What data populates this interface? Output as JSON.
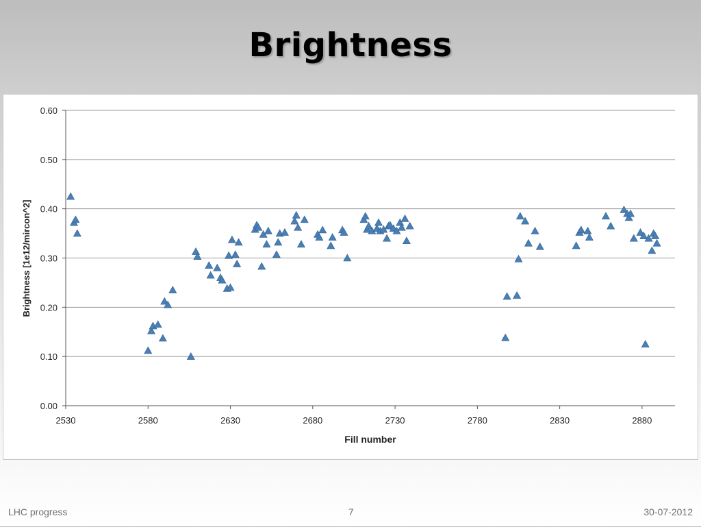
{
  "slide": {
    "title": "Brightness"
  },
  "footer": {
    "left": "LHC progress",
    "page": "7",
    "date": "30-07-2012"
  },
  "chart_data": {
    "type": "scatter",
    "title": "",
    "xlabel": "Fill number",
    "ylabel": "Brightness [1e12/mircon^2]",
    "xlim": [
      2530,
      2900
    ],
    "ylim": [
      0.0,
      0.6
    ],
    "x_ticks": [
      "2530",
      "2580",
      "2630",
      "2680",
      "2730",
      "2780",
      "2830",
      "2880"
    ],
    "y_ticks": [
      "0.00",
      "0.10",
      "0.20",
      "0.30",
      "0.40",
      "0.50",
      "0.60"
    ],
    "grid": "horizontal",
    "legend": "none",
    "marker": "triangle",
    "color": "#4a7fb5",
    "series": [
      {
        "points": [
          [
            2533,
            0.425
          ],
          [
            2535,
            0.372
          ],
          [
            2536,
            0.378
          ],
          [
            2537,
            0.35
          ],
          [
            2580,
            0.112
          ],
          [
            2582,
            0.152
          ],
          [
            2583,
            0.162
          ],
          [
            2586,
            0.165
          ],
          [
            2589,
            0.137
          ],
          [
            2590,
            0.212
          ],
          [
            2592,
            0.205
          ],
          [
            2595,
            0.235
          ],
          [
            2606,
            0.1
          ],
          [
            2609,
            0.313
          ],
          [
            2610,
            0.303
          ],
          [
            2617,
            0.285
          ],
          [
            2618,
            0.265
          ],
          [
            2622,
            0.28
          ],
          [
            2624,
            0.26
          ],
          [
            2625,
            0.255
          ],
          [
            2628,
            0.238
          ],
          [
            2629,
            0.305
          ],
          [
            2630,
            0.24
          ],
          [
            2631,
            0.337
          ],
          [
            2633,
            0.307
          ],
          [
            2634,
            0.288
          ],
          [
            2635,
            0.332
          ],
          [
            2645,
            0.358
          ],
          [
            2646,
            0.367
          ],
          [
            2647,
            0.362
          ],
          [
            2649,
            0.283
          ],
          [
            2650,
            0.348
          ],
          [
            2652,
            0.328
          ],
          [
            2653,
            0.355
          ],
          [
            2658,
            0.307
          ],
          [
            2659,
            0.332
          ],
          [
            2660,
            0.35
          ],
          [
            2663,
            0.352
          ],
          [
            2669,
            0.375
          ],
          [
            2670,
            0.387
          ],
          [
            2671,
            0.362
          ],
          [
            2673,
            0.328
          ],
          [
            2675,
            0.378
          ],
          [
            2683,
            0.348
          ],
          [
            2684,
            0.342
          ],
          [
            2686,
            0.357
          ],
          [
            2691,
            0.325
          ],
          [
            2692,
            0.342
          ],
          [
            2698,
            0.357
          ],
          [
            2699,
            0.352
          ],
          [
            2701,
            0.3
          ],
          [
            2711,
            0.378
          ],
          [
            2712,
            0.385
          ],
          [
            2713,
            0.358
          ],
          [
            2714,
            0.365
          ],
          [
            2716,
            0.355
          ],
          [
            2719,
            0.36
          ],
          [
            2720,
            0.372
          ],
          [
            2721,
            0.355
          ],
          [
            2723,
            0.358
          ],
          [
            2725,
            0.34
          ],
          [
            2726,
            0.365
          ],
          [
            2727,
            0.367
          ],
          [
            2729,
            0.36
          ],
          [
            2731,
            0.355
          ],
          [
            2733,
            0.372
          ],
          [
            2734,
            0.362
          ],
          [
            2736,
            0.38
          ],
          [
            2737,
            0.335
          ],
          [
            2739,
            0.365
          ],
          [
            2797,
            0.138
          ],
          [
            2798,
            0.222
          ],
          [
            2804,
            0.224
          ],
          [
            2805,
            0.298
          ],
          [
            2806,
            0.385
          ],
          [
            2809,
            0.375
          ],
          [
            2811,
            0.33
          ],
          [
            2815,
            0.355
          ],
          [
            2818,
            0.323
          ],
          [
            2840,
            0.325
          ],
          [
            2842,
            0.352
          ],
          [
            2843,
            0.357
          ],
          [
            2847,
            0.355
          ],
          [
            2848,
            0.342
          ],
          [
            2858,
            0.385
          ],
          [
            2861,
            0.365
          ],
          [
            2869,
            0.398
          ],
          [
            2871,
            0.39
          ],
          [
            2872,
            0.382
          ],
          [
            2873,
            0.39
          ],
          [
            2875,
            0.34
          ],
          [
            2879,
            0.352
          ],
          [
            2881,
            0.345
          ],
          [
            2882,
            0.125
          ],
          [
            2884,
            0.34
          ],
          [
            2886,
            0.315
          ],
          [
            2887,
            0.35
          ],
          [
            2888,
            0.345
          ],
          [
            2889,
            0.33
          ]
        ]
      }
    ]
  }
}
